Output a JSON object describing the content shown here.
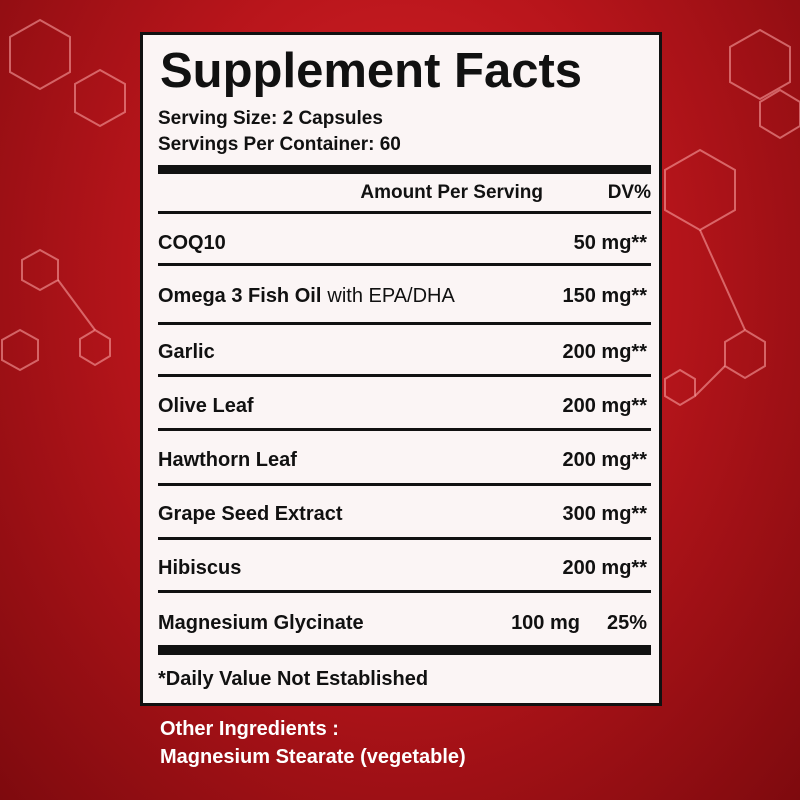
{
  "label": {
    "title": "Supplement Facts",
    "serving_size": "Serving Size: 2 Capsules",
    "servings_per_container": "Servings Per Container: 60",
    "column_headers": {
      "amount": "Amount Per Serving",
      "dv": "DV%"
    },
    "rows": [
      {
        "name": "COQ10",
        "amount": "50 mg**"
      },
      {
        "name": "Omega 3 Fish Oil",
        "note": "with EPA/DHA",
        "amount": "150 mg**"
      },
      {
        "name": "Garlic",
        "amount": "200 mg**"
      },
      {
        "name": "Olive Leaf",
        "amount": "200 mg**"
      },
      {
        "name": "Hawthorn Leaf",
        "amount": "200 mg**"
      },
      {
        "name": "Grape Seed Extract",
        "amount": "300 mg**"
      },
      {
        "name": "Hibiscus",
        "amount": "200 mg**"
      },
      {
        "name": "Magnesium Glycinate",
        "amount": "100 mg",
        "dv": "25%"
      }
    ],
    "footnote": "*Daily Value Not Established"
  },
  "other_ingredients": {
    "heading": "Other Ingredients :",
    "text": "Magnesium Stearate (vegetable)"
  }
}
